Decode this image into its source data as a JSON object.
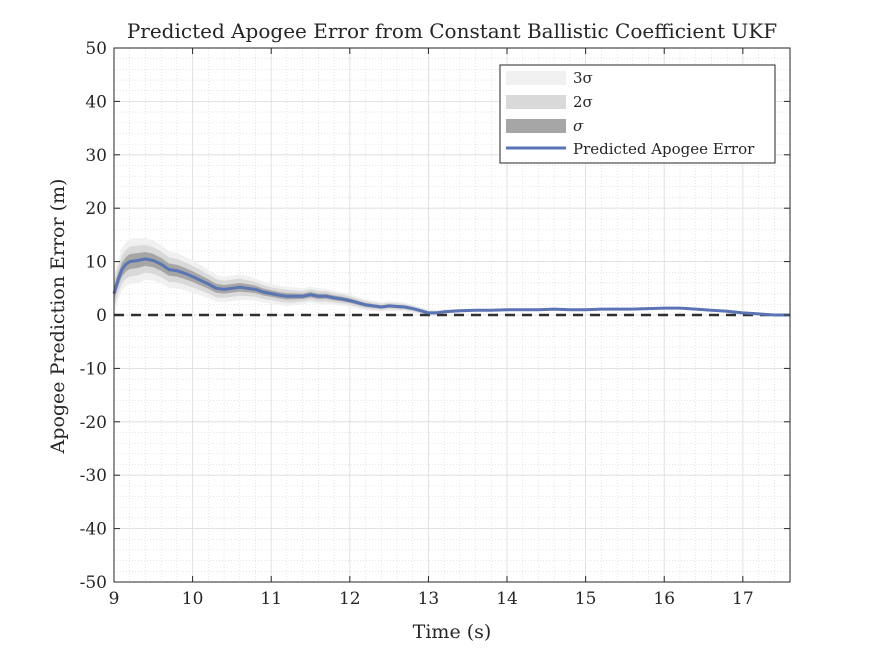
{
  "chart_data": {
    "type": "line",
    "title": "Predicted Apogee Error from Constant Ballistic Coefficient UKF",
    "xlabel": "Time (s)",
    "ylabel": "Apogee Prediction Error (m)",
    "xlim": [
      9,
      17.6
    ],
    "ylim": [
      -50,
      50
    ],
    "xticks": [
      9,
      10,
      11,
      12,
      13,
      14,
      15,
      16,
      17
    ],
    "yticks": [
      -50,
      -40,
      -30,
      -20,
      -10,
      0,
      10,
      20,
      30,
      40,
      50
    ],
    "xtick_labels": [
      "9",
      "10",
      "11",
      "12",
      "13",
      "14",
      "15",
      "16",
      "17"
    ],
    "ytick_labels": [
      "-50",
      "-40",
      "-30",
      "-20",
      "-10",
      "0",
      "10",
      "20",
      "30",
      "40",
      "50"
    ],
    "grid": true,
    "minor_grid": true,
    "legend_position": "top-right",
    "legend": [
      {
        "label": "3σ",
        "type": "band",
        "color": "#f0f0f0"
      },
      {
        "label": "2σ",
        "type": "band",
        "color": "#d9d9d9"
      },
      {
        "label": "σ",
        "type": "band",
        "color": "#a6a6a6"
      },
      {
        "label": "Predicted Apogee Error",
        "type": "line",
        "color": "#5a74b4"
      }
    ],
    "reference_line": {
      "y": 0,
      "style": "dashed",
      "color": "#303030"
    },
    "series": [
      {
        "name": "Predicted Apogee Error",
        "x": [
          9.0,
          9.05,
          9.1,
          9.15,
          9.2,
          9.3,
          9.4,
          9.5,
          9.6,
          9.7,
          9.8,
          9.9,
          10.0,
          10.1,
          10.2,
          10.3,
          10.4,
          10.5,
          10.6,
          10.7,
          10.8,
          10.9,
          11.0,
          11.1,
          11.2,
          11.3,
          11.4,
          11.5,
          11.6,
          11.7,
          11.8,
          11.9,
          12.0,
          12.1,
          12.2,
          12.3,
          12.4,
          12.5,
          12.6,
          12.7,
          12.8,
          12.9,
          13.0,
          13.1,
          13.2,
          13.4,
          13.6,
          13.8,
          14.0,
          14.2,
          14.4,
          14.6,
          14.8,
          15.0,
          15.2,
          15.4,
          15.6,
          15.8,
          16.0,
          16.2,
          16.4,
          16.6,
          16.8,
          17.0,
          17.2,
          17.4,
          17.6
        ],
        "y": [
          4.0,
          6.5,
          8.5,
          9.5,
          10.0,
          10.2,
          10.5,
          10.2,
          9.5,
          8.5,
          8.3,
          7.8,
          7.2,
          6.5,
          5.8,
          5.0,
          4.8,
          5.0,
          5.2,
          5.0,
          4.8,
          4.3,
          4.0,
          3.7,
          3.5,
          3.5,
          3.5,
          3.8,
          3.5,
          3.5,
          3.2,
          3.0,
          2.7,
          2.3,
          1.9,
          1.7,
          1.5,
          1.7,
          1.6,
          1.5,
          1.2,
          0.8,
          0.4,
          0.4,
          0.6,
          0.8,
          0.9,
          0.9,
          1.0,
          1.0,
          1.0,
          1.1,
          1.0,
          1.0,
          1.1,
          1.1,
          1.1,
          1.2,
          1.3,
          1.3,
          1.1,
          0.9,
          0.7,
          0.4,
          0.2,
          0.0,
          0.0
        ],
        "color": "#5a74b4"
      }
    ],
    "bands": {
      "x": [
        9.0,
        9.1,
        9.2,
        9.3,
        9.4,
        9.6,
        9.8,
        10.0,
        10.2,
        10.4,
        10.6,
        10.8,
        11.0,
        11.2,
        11.4,
        11.6,
        11.8,
        12.0,
        12.2,
        12.4,
        12.6,
        12.8,
        13.0,
        13.2,
        13.5,
        14.0,
        15.0,
        16.0,
        17.0,
        17.6
      ],
      "sigma": [
        1.2,
        1.3,
        1.4,
        1.4,
        1.3,
        1.2,
        1.1,
        1.0,
        0.9,
        0.8,
        0.8,
        0.7,
        0.6,
        0.6,
        0.5,
        0.5,
        0.45,
        0.4,
        0.35,
        0.3,
        0.3,
        0.25,
        0.2,
        0.15,
        0.1,
        0.08,
        0.06,
        0.05,
        0.04,
        0.03
      ]
    }
  }
}
